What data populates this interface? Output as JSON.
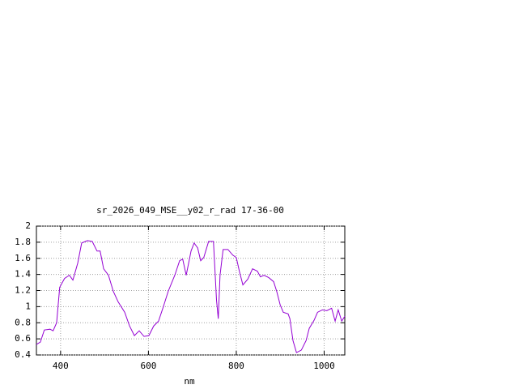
{
  "chart_data": {
    "type": "line",
    "title": "sr_2026_049_MSE__y02_r_rad 17-36-00",
    "xlabel": "nm",
    "x": [
      345,
      354,
      363,
      376,
      383,
      391,
      398,
      409,
      420,
      428,
      439,
      448,
      461,
      472,
      483,
      490,
      498,
      509,
      520,
      531,
      546,
      557,
      568,
      579,
      590,
      601,
      612,
      623,
      634,
      645,
      660,
      671,
      678,
      686,
      697,
      704,
      712,
      719,
      726,
      737,
      748,
      755,
      759,
      763,
      770,
      781,
      792,
      800,
      807,
      815,
      826,
      837,
      848,
      855,
      863,
      874,
      885,
      892,
      900,
      907,
      918,
      922,
      929,
      937,
      948,
      959,
      966,
      977,
      985,
      996,
      1006,
      1017,
      1025,
      1032,
      1040,
      1047
    ],
    "series": [
      {
        "color": "#9400d3",
        "values": [
          0.53,
          0.56,
          0.71,
          0.72,
          0.7,
          0.8,
          1.24,
          1.35,
          1.39,
          1.33,
          1.54,
          1.79,
          1.82,
          1.81,
          1.69,
          1.69,
          1.47,
          1.39,
          1.19,
          1.06,
          0.93,
          0.76,
          0.64,
          0.7,
          0.63,
          0.64,
          0.76,
          0.82,
          1.0,
          1.19,
          1.39,
          1.57,
          1.59,
          1.39,
          1.69,
          1.79,
          1.73,
          1.57,
          1.61,
          1.81,
          1.81,
          1.08,
          0.85,
          1.39,
          1.71,
          1.71,
          1.64,
          1.61,
          1.44,
          1.27,
          1.34,
          1.47,
          1.44,
          1.37,
          1.39,
          1.36,
          1.31,
          1.19,
          1.02,
          0.93,
          0.91,
          0.85,
          0.58,
          0.43,
          0.46,
          0.58,
          0.73,
          0.83,
          0.93,
          0.96,
          0.95,
          0.98,
          0.82,
          0.96,
          0.82,
          0.88
        ]
      }
    ],
    "xlim": [
      345,
      1047
    ],
    "xticks": [
      400,
      600,
      800,
      1000
    ],
    "ylim": [
      0.4,
      2
    ],
    "yticks": [
      0.4,
      0.6,
      0.8,
      1,
      1.2,
      1.4,
      1.6,
      1.8,
      2
    ],
    "grid": true
  }
}
